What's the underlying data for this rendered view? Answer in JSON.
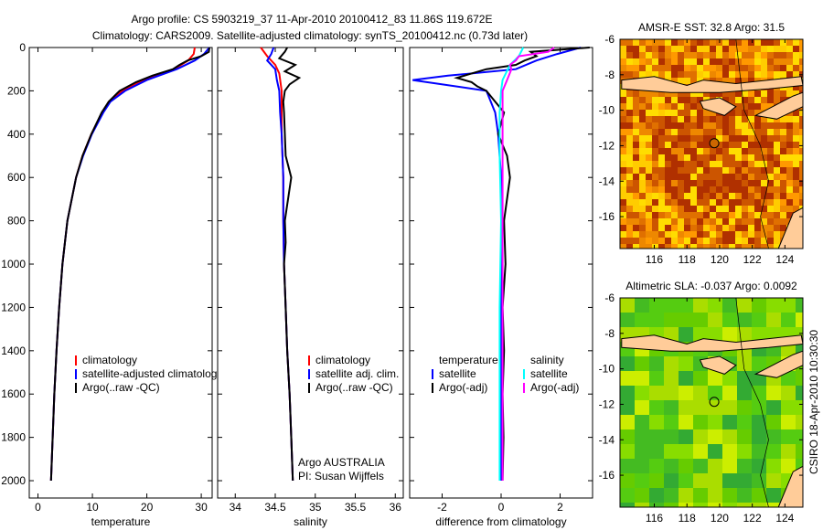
{
  "title_line1": "Argo profile: CS 5903219_37 11-Apr-2010 20100412_83 11.86S 119.672E",
  "title_line2": "Climatology: CARS2009. Satellite-adjusted climatology: synTS_20100412.nc (0.73d later)",
  "side_label": "CSIRO 18-Apr-2010 10:30:30",
  "colors": {
    "climatology": "#ff0000",
    "satellite": "#0000ff",
    "argo": "#000000",
    "sal_satellite": "#00ffff",
    "sal_argo": "#ff00ff"
  },
  "chart_data": [
    {
      "type": "line",
      "xlabel": "temperature",
      "xlim": [
        -1.6,
        32
      ],
      "ylim": [
        2080,
        0
      ],
      "xticks": [
        0,
        10,
        20,
        30
      ],
      "yticks": [
        0,
        200,
        400,
        600,
        800,
        1000,
        1200,
        1400,
        1600,
        1800,
        2000
      ],
      "legend": [
        "climatology",
        "satellite-adjusted climatology",
        "Argo(..raw -QC)"
      ],
      "legend_placement": "bottom-center",
      "series": [
        {
          "name": "climatology",
          "color": "#ff0000",
          "depth": [
            0,
            30,
            60,
            100,
            150,
            200,
            250,
            300,
            400,
            500,
            600,
            800,
            1000,
            1200,
            1400,
            1600,
            1800,
            2000
          ],
          "values": [
            28.8,
            28.6,
            27.6,
            25.0,
            19.5,
            15.5,
            13.0,
            11.8,
            9.8,
            8.2,
            7.0,
            5.4,
            4.5,
            3.9,
            3.4,
            3.0,
            2.7,
            2.4
          ]
        },
        {
          "name": "satellite-adjusted climatology",
          "color": "#0000ff",
          "depth": [
            0,
            30,
            60,
            100,
            150,
            200,
            250,
            300,
            400,
            500,
            600,
            800,
            1000,
            1200,
            1400,
            1600,
            1800,
            2000
          ],
          "values": [
            31.5,
            30.5,
            28.8,
            25.5,
            20.0,
            16.0,
            13.3,
            12.0,
            9.9,
            8.3,
            7.0,
            5.4,
            4.5,
            3.9,
            3.4,
            3.0,
            2.7,
            2.4
          ]
        },
        {
          "name": "Argo(..raw -QC)",
          "color": "#000000",
          "depth": [
            0,
            20,
            40,
            60,
            80,
            100,
            130,
            160,
            200,
            250,
            300,
            400,
            500,
            600,
            800,
            1000,
            1200,
            1400,
            1600,
            1800,
            2000
          ],
          "values": [
            31.5,
            31.4,
            30.0,
            27.5,
            26.0,
            24.8,
            21.0,
            18.0,
            15.0,
            13.0,
            11.7,
            9.8,
            8.2,
            7.0,
            5.4,
            4.5,
            3.9,
            3.4,
            3.0,
            2.7,
            2.4
          ]
        }
      ]
    },
    {
      "type": "line",
      "xlabel": "salinity",
      "xlim": [
        33.78,
        36.1
      ],
      "ylim": [
        2080,
        0
      ],
      "xticks": [
        34,
        34.5,
        35,
        35.5,
        36
      ],
      "legend": [
        "climatology",
        "satellite adj. clim.",
        "Argo(..raw -QC)"
      ],
      "legend_placement": "bottom-right",
      "annotation": [
        "Argo AUSTRALIA",
        "PI: Susan Wijffels"
      ],
      "series": [
        {
          "name": "climatology",
          "color": "#ff0000",
          "depth": [
            0,
            40,
            80,
            120,
            200,
            300,
            400,
            600,
            800,
            1000,
            1200,
            1400,
            1600,
            1800,
            2000
          ],
          "values": [
            34.32,
            34.4,
            34.5,
            34.55,
            34.58,
            34.58,
            34.58,
            34.6,
            34.6,
            34.61,
            34.63,
            34.65,
            34.68,
            34.7,
            34.72
          ]
        },
        {
          "name": "satellite adj. clim.",
          "color": "#0000ff",
          "depth": [
            0,
            30,
            60,
            100,
            150,
            200,
            300,
            400,
            600,
            800,
            1000,
            1200,
            1400,
            1600,
            1800,
            2000
          ],
          "values": [
            34.48,
            34.45,
            34.4,
            34.5,
            34.52,
            34.55,
            34.56,
            34.58,
            34.6,
            34.6,
            34.61,
            34.63,
            34.65,
            34.68,
            34.7,
            34.72
          ]
        },
        {
          "name": "Argo(..raw -QC)",
          "color": "#000000",
          "depth": [
            0,
            20,
            50,
            80,
            110,
            140,
            170,
            200,
            250,
            300,
            400,
            500,
            600,
            700,
            800,
            900,
            1000,
            1200,
            1400,
            1600,
            1800,
            2000
          ],
          "values": [
            34.65,
            34.62,
            34.55,
            34.75,
            34.62,
            34.8,
            34.68,
            34.62,
            34.6,
            34.61,
            34.62,
            34.63,
            34.7,
            34.66,
            34.62,
            34.63,
            34.61,
            34.63,
            34.65,
            34.68,
            34.7,
            34.72
          ]
        }
      ]
    },
    {
      "type": "line",
      "xlabel": "difference from climatology",
      "xlim": [
        -3.1,
        3.1
      ],
      "ylim": [
        2080,
        0
      ],
      "xticks": [
        -2,
        0,
        2
      ],
      "legend": [
        "temperature",
        "satellite",
        "Argo(-adj)",
        "salinity",
        "satellite",
        "Argo(-adj)"
      ],
      "legend_placement": "bottom-center",
      "series": [
        {
          "name": "temperature satellite",
          "color": "#0000ff",
          "depth": [
            0,
            30,
            60,
            100,
            130,
            150,
            200,
            300,
            400,
            600,
            800,
            1200,
            1600,
            2000
          ],
          "values": [
            2.7,
            1.9,
            1.2,
            0.5,
            -1.8,
            -3.0,
            -0.5,
            -0.2,
            -0.1,
            0,
            0,
            0,
            0,
            0
          ]
        },
        {
          "name": "temperature Argo(-adj)",
          "color": "#000000",
          "depth": [
            0,
            20,
            40,
            60,
            80,
            100,
            120,
            140,
            160,
            180,
            200,
            250,
            300,
            400,
            500,
            600,
            800,
            1000,
            1200,
            1400,
            1600,
            1800,
            2000
          ],
          "values": [
            3.0,
            1.0,
            1.2,
            0.8,
            0.5,
            -0.5,
            -1.0,
            -1.5,
            -1.0,
            -0.8,
            -0.5,
            -0.2,
            0.1,
            -0.1,
            0.2,
            0.3,
            0.1,
            0.15,
            0.05,
            0.1,
            0.05,
            0.08,
            0.05
          ]
        },
        {
          "name": "salinity satellite",
          "color": "#00ffff",
          "depth": [
            0,
            40,
            80,
            150,
            200,
            300,
            500,
            800,
            1200,
            1600,
            2000
          ],
          "values": [
            0.75,
            0.6,
            0.3,
            0.05,
            0,
            -0.05,
            -0.05,
            0,
            -0.05,
            -0.05,
            -0.05
          ]
        },
        {
          "name": "salinity Argo(-adj)",
          "color": "#ff00ff",
          "depth": [
            0,
            20,
            40,
            60,
            80,
            100,
            150,
            200,
            300,
            500,
            800,
            1200,
            1600,
            2000
          ],
          "values": [
            1.8,
            1.6,
            0.6,
            0.5,
            0.3,
            0.35,
            0.2,
            0.05,
            0.05,
            0.05,
            0.05,
            0.05,
            0.05,
            0.05
          ]
        }
      ]
    },
    {
      "type": "heatmap",
      "title": "AMSR-E SST: 32.8 Argo: 31.5",
      "xlim": [
        113.9,
        125.1
      ],
      "ylim": [
        -17.8,
        -6
      ],
      "xticks": [
        116,
        118,
        120,
        122,
        124
      ],
      "yticks": [
        -6,
        -8,
        -10,
        -12,
        -14,
        -16
      ],
      "argo_position": {
        "lon": 119.672,
        "lat": -11.86
      }
    },
    {
      "type": "heatmap",
      "title": "Altimetric SLA: -0.037 Argo: 0.0092",
      "xlim": [
        113.9,
        125.1
      ],
      "ylim": [
        -17.8,
        -6
      ],
      "xticks": [
        116,
        118,
        120,
        122,
        124
      ],
      "yticks": [
        -6,
        -8,
        -10,
        -12,
        -14,
        -16
      ],
      "argo_position": {
        "lon": 119.672,
        "lat": -11.86
      }
    }
  ]
}
